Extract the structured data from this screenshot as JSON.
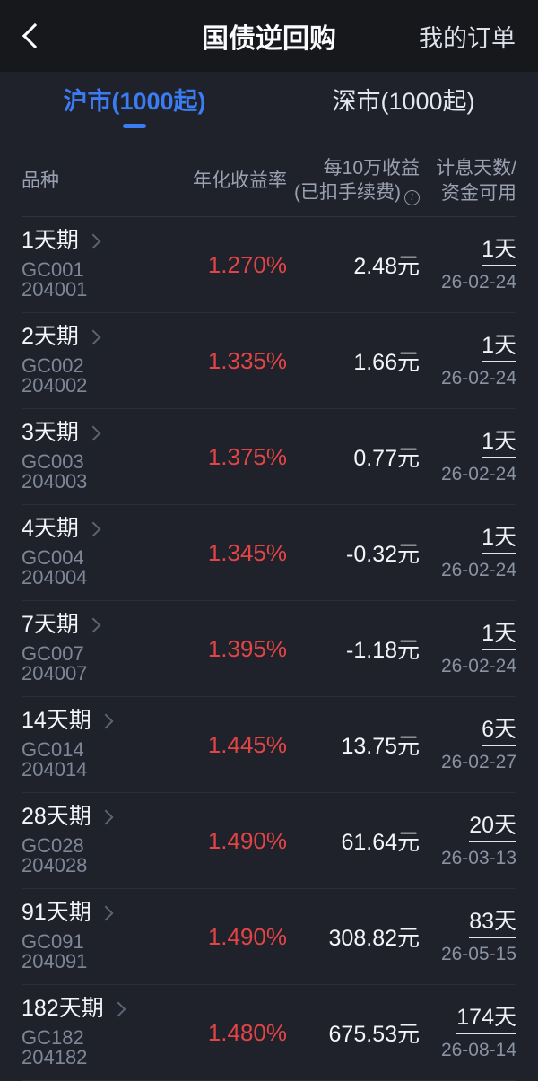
{
  "appbar": {
    "title": "国债逆回购",
    "orders_label": "我的订单"
  },
  "tabs": [
    {
      "label": "沪市(1000起)",
      "active": true
    },
    {
      "label": "深市(1000起)",
      "active": false
    }
  ],
  "table": {
    "headers": {
      "product": "品种",
      "yield": "年化收益率",
      "income_line1": "每10万收益",
      "income_line2": "(已扣手续费)",
      "days_line1": "计息天数/",
      "days_line2": "资金可用"
    },
    "rows": [
      {
        "name": "1天期",
        "code": "GC001 204001",
        "yield": "1.270%",
        "income": "2.48元",
        "days": "1天",
        "date": "26-02-24"
      },
      {
        "name": "2天期",
        "code": "GC002 204002",
        "yield": "1.335%",
        "income": "1.66元",
        "days": "1天",
        "date": "26-02-24"
      },
      {
        "name": "3天期",
        "code": "GC003 204003",
        "yield": "1.375%",
        "income": "0.77元",
        "days": "1天",
        "date": "26-02-24"
      },
      {
        "name": "4天期",
        "code": "GC004 204004",
        "yield": "1.345%",
        "income": "-0.32元",
        "days": "1天",
        "date": "26-02-24"
      },
      {
        "name": "7天期",
        "code": "GC007 204007",
        "yield": "1.395%",
        "income": "-1.18元",
        "days": "1天",
        "date": "26-02-24"
      },
      {
        "name": "14天期",
        "code": "GC014 204014",
        "yield": "1.445%",
        "income": "13.75元",
        "days": "6天",
        "date": "26-02-27"
      },
      {
        "name": "28天期",
        "code": "GC028 204028",
        "yield": "1.490%",
        "income": "61.64元",
        "days": "20天",
        "date": "26-03-13"
      },
      {
        "name": "91天期",
        "code": "GC091 204091",
        "yield": "1.490%",
        "income": "308.82元",
        "days": "83天",
        "date": "26-05-15"
      },
      {
        "name": "182天期",
        "code": "GC182 204182",
        "yield": "1.480%",
        "income": "675.53元",
        "days": "174天",
        "date": "26-08-14"
      }
    ]
  },
  "colors": {
    "accent_blue": "#3b7cf2",
    "yield_red": "#e24545",
    "appbar_bg": "#17181b",
    "body_bg": "#1f212b"
  }
}
